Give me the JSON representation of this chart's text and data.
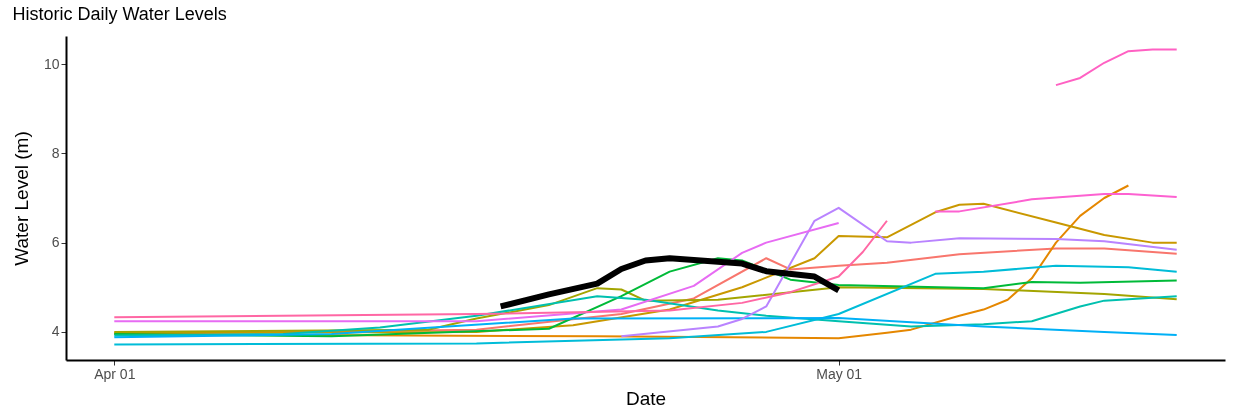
{
  "chart_data": {
    "type": "line",
    "title": "Historic Daily Water Levels",
    "xlabel": "Date",
    "ylabel": "Water Level (m)",
    "xlim": [
      "--03-30",
      "--05-17"
    ],
    "ylim": [
      3.37,
      10.63
    ],
    "xticks": [
      {
        "value": "--04-01",
        "label": "Apr 01"
      },
      {
        "value": "--05-01",
        "label": "May 01"
      }
    ],
    "yticks": [
      4,
      6,
      8,
      10
    ],
    "grid": false,
    "legend": false,
    "line_style": "solid",
    "marker": "none",
    "series": [
      {
        "color": "#f8766d",
        "x": [
          "--04-01",
          "--04-16",
          "--04-22",
          "--04-25",
          "--04-28",
          "--04-29",
          "--05-01",
          "--05-03",
          "--05-06",
          "--05-10",
          "--05-12",
          "--05-15"
        ],
        "values": [
          3.95,
          4.05,
          4.4,
          4.75,
          5.65,
          5.4,
          5.48,
          5.55,
          5.74,
          5.87,
          5.87,
          5.75
        ]
      },
      {
        "color": "#e58700",
        "x": [
          "--04-01",
          "--04-21",
          "--05-01",
          "--05-03",
          "--05-04",
          "--05-06",
          "--05-07",
          "--05-08",
          "--05-09",
          "--05-10",
          "--05-11",
          "--05-12",
          "--05-13"
        ],
        "values": [
          3.95,
          3.9,
          3.86,
          3.98,
          4.05,
          4.36,
          4.5,
          4.72,
          5.2,
          6.0,
          6.6,
          7.0,
          7.28
        ]
      },
      {
        "color": "#c99800",
        "x": [
          "--04-01",
          "--04-16",
          "--04-20",
          "--04-24",
          "--04-27",
          "--04-30",
          "--05-01",
          "--05-03",
          "--05-05",
          "--05-06",
          "--05-07",
          "--05-10",
          "--05-12",
          "--05-14",
          "--05-15"
        ],
        "values": [
          3.98,
          4.0,
          4.15,
          4.5,
          5.0,
          5.65,
          6.15,
          6.12,
          6.68,
          6.85,
          6.87,
          6.45,
          6.17,
          6.0,
          6.0
        ]
      },
      {
        "color": "#a3a500",
        "x": [
          "--04-01",
          "--04-14",
          "--04-16",
          "--04-19",
          "--04-21",
          "--04-22",
          "--04-23",
          "--04-26",
          "--05-01",
          "--05-07",
          "--05-12",
          "--05-15"
        ],
        "values": [
          4.0,
          4.05,
          4.3,
          4.6,
          4.98,
          4.95,
          4.7,
          4.72,
          5.0,
          4.96,
          4.85,
          4.73
        ]
      },
      {
        "color": "#00ba38",
        "x": [
          "--04-01",
          "--04-10",
          "--04-19",
          "--04-22",
          "--04-24",
          "--04-26",
          "--04-27",
          "--04-29",
          "--05-01",
          "--05-07",
          "--05-09",
          "--05-11",
          "--05-15"
        ],
        "values": [
          3.95,
          3.9,
          4.07,
          4.8,
          5.35,
          5.65,
          5.6,
          5.17,
          5.05,
          4.98,
          5.12,
          5.1,
          5.15
        ]
      },
      {
        "color": "#00c0af",
        "x": [
          "--04-01",
          "--04-08",
          "--04-12",
          "--04-16",
          "--04-21",
          "--04-23",
          "--04-26",
          "--04-28",
          "--05-01",
          "--05-04",
          "--05-07",
          "--05-09",
          "--05-11",
          "--05-12",
          "--05-15"
        ],
        "values": [
          3.92,
          3.95,
          4.1,
          4.36,
          4.8,
          4.72,
          4.48,
          4.36,
          4.24,
          4.12,
          4.17,
          4.24,
          4.57,
          4.7,
          4.8
        ]
      },
      {
        "color": "#00bcd8",
        "x": [
          "--04-01",
          "--04-16",
          "--04-24",
          "--04-28",
          "--05-01",
          "--05-05",
          "--05-07",
          "--05-10",
          "--05-13",
          "--05-15"
        ],
        "values": [
          3.72,
          3.74,
          3.86,
          4.0,
          4.4,
          5.3,
          5.35,
          5.48,
          5.45,
          5.35
        ]
      },
      {
        "color": "#00b0f6",
        "x": [
          "--04-01",
          "--04-10",
          "--04-20",
          "--05-01",
          "--05-07",
          "--05-12",
          "--05-15"
        ],
        "values": [
          3.88,
          3.95,
          4.3,
          4.31,
          4.12,
          4.0,
          3.93
        ]
      },
      {
        "color": "#b983ff",
        "x": [
          "--04-22",
          "--04-26",
          "--04-27",
          "--04-28",
          "--04-30",
          "--05-01",
          "--05-03",
          "--05-04",
          "--05-06",
          "--05-10",
          "--05-12",
          "--05-15"
        ],
        "values": [
          3.9,
          4.12,
          4.29,
          4.57,
          6.49,
          6.78,
          6.03,
          6.0,
          6.1,
          6.08,
          6.03,
          5.84
        ]
      },
      {
        "color": "#e76bf3",
        "x": [
          "--04-01",
          "--04-16",
          "--04-22",
          "--04-25",
          "--04-27",
          "--04-28",
          "--05-01"
        ],
        "values": [
          4.24,
          4.24,
          4.5,
          5.03,
          5.77,
          6.0,
          6.44
        ]
      },
      {
        "color": "#fd61d1",
        "x": [
          "--05-05",
          "--05-06",
          "--05-09",
          "--05-12",
          "--05-13",
          "--05-15"
        ],
        "values": [
          6.7,
          6.7,
          6.97,
          7.09,
          7.09,
          7.02
        ]
      },
      {
        "color": "#ff67a4",
        "x": [
          "--04-01",
          "--04-16",
          "--04-24",
          "--04-27",
          "--04-29",
          "--05-01",
          "--05-02",
          "--05-03"
        ],
        "values": [
          4.33,
          4.4,
          4.48,
          4.65,
          4.89,
          5.24,
          5.79,
          6.49
        ]
      },
      {
        "color": "#ff61c3",
        "x": [
          "--05-10",
          "--05-11",
          "--05-12",
          "--05-13",
          "--05-14",
          "--05-15"
        ],
        "values": [
          9.53,
          9.69,
          10.03,
          10.29,
          10.33,
          10.33
        ]
      },
      {
        "color": "#000000",
        "x": [
          "--04-17",
          "--04-19",
          "--04-21",
          "--04-22",
          "--04-23",
          "--04-24",
          "--04-27",
          "--04-28",
          "--04-30",
          "--05-01"
        ],
        "values": [
          4.57,
          4.84,
          5.08,
          5.41,
          5.6,
          5.65,
          5.53,
          5.36,
          5.24,
          4.93
        ]
      }
    ]
  }
}
